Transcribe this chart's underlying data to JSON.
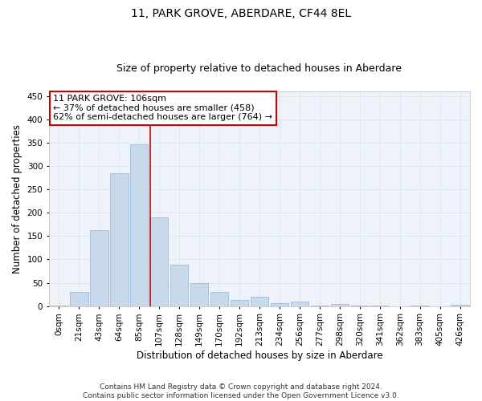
{
  "title_line1": "11, PARK GROVE, ABERDARE, CF44 8EL",
  "title_line2": "Size of property relative to detached houses in Aberdare",
  "xlabel": "Distribution of detached houses by size in Aberdare",
  "ylabel": "Number of detached properties",
  "bar_color": "#c8d9ec",
  "bar_edge_color": "#a0bcd8",
  "bin_labels": [
    "0sqm",
    "21sqm",
    "43sqm",
    "64sqm",
    "85sqm",
    "107sqm",
    "128sqm",
    "149sqm",
    "170sqm",
    "192sqm",
    "213sqm",
    "234sqm",
    "256sqm",
    "277sqm",
    "298sqm",
    "320sqm",
    "341sqm",
    "362sqm",
    "383sqm",
    "405sqm",
    "426sqm"
  ],
  "bar_heights": [
    2,
    30,
    163,
    285,
    347,
    191,
    88,
    50,
    30,
    14,
    20,
    6,
    10,
    1,
    5,
    1,
    1,
    0,
    1,
    0,
    3
  ],
  "property_bin_index": 5,
  "annotation_lines": [
    "11 PARK GROVE: 106sqm",
    "← 37% of detached houses are smaller (458)",
    "62% of semi-detached houses are larger (764) →"
  ],
  "vline_color": "#cc0000",
  "annotation_box_color": "#ffffff",
  "annotation_box_edge_color": "#cc0000",
  "grid_color": "#dce6f0",
  "background_color": "#eef3fa",
  "ylim": [
    0,
    460
  ],
  "yticks": [
    0,
    50,
    100,
    150,
    200,
    250,
    300,
    350,
    400,
    450
  ],
  "footer_text": "Contains HM Land Registry data © Crown copyright and database right 2024.\nContains public sector information licensed under the Open Government Licence v3.0.",
  "title_fontsize": 10,
  "subtitle_fontsize": 9,
  "axis_label_fontsize": 8.5,
  "tick_fontsize": 7.5,
  "annotation_fontsize": 8,
  "footer_fontsize": 6.5
}
